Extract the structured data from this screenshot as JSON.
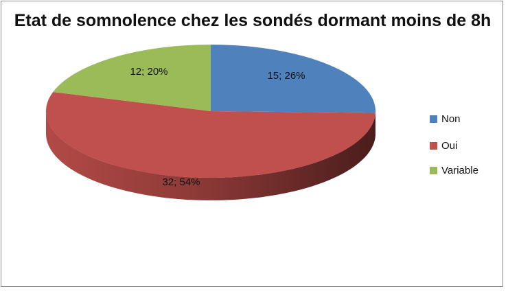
{
  "chart_data": {
    "type": "pie",
    "title": "Etat de somnolence chez les sondés dormant moins de 8h",
    "categories": [
      "Non",
      "Oui",
      "Variable"
    ],
    "values": [
      15,
      32,
      12
    ],
    "percent_labels": [
      "26%",
      "54%",
      "20%"
    ],
    "data_labels": [
      "15; 26%",
      "32; 54%",
      "12; 20%"
    ],
    "colors": [
      "#4f81bd",
      "#c0504d",
      "#9bbb59"
    ],
    "three_d": true,
    "legend_position": "right"
  }
}
